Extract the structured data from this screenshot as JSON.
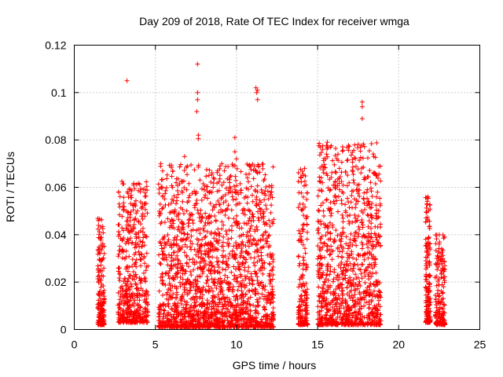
{
  "chart_data": {
    "type": "scatter",
    "title": "Day 209 of 2018, Rate Of TEC Index for receiver wmga",
    "xlabel": "GPS time / hours",
    "ylabel": "ROTI / TECUs",
    "xlim": [
      0,
      25
    ],
    "ylim": [
      0,
      0.12
    ],
    "x_ticks": [
      0,
      5,
      10,
      15,
      20,
      25
    ],
    "x_tick_labels": [
      "0",
      "5",
      "10",
      "15",
      "20",
      "25"
    ],
    "y_ticks": [
      0,
      0.02,
      0.04,
      0.06,
      0.08,
      0.1,
      0.12
    ],
    "y_tick_labels": [
      "0",
      "0.02",
      "0.04",
      "0.06",
      "0.08",
      "0.1",
      "0.12"
    ],
    "grid": true,
    "marker": "+",
    "color": "#ff0000",
    "clusters": [
      {
        "x_range": [
          1.45,
          1.85
        ],
        "y_min": 0.002,
        "y_max": 0.048,
        "density": "dense"
      },
      {
        "x_range": [
          2.7,
          4.55
        ],
        "y_min": 0.003,
        "y_max": 0.064,
        "density": "very dense"
      },
      {
        "x_range": [
          5.2,
          12.3
        ],
        "y_min": 0.001,
        "y_max": 0.07,
        "density": "very dense"
      },
      {
        "x_range": [
          13.8,
          14.4
        ],
        "y_min": 0.002,
        "y_max": 0.068,
        "density": "dense"
      },
      {
        "x_range": [
          15.0,
          18.9
        ],
        "y_min": 0.002,
        "y_max": 0.079,
        "density": "very dense"
      },
      {
        "x_range": [
          21.65,
          21.95
        ],
        "y_min": 0.003,
        "y_max": 0.056,
        "density": "dense"
      },
      {
        "x_range": [
          22.25,
          22.85
        ],
        "y_min": 0.002,
        "y_max": 0.04,
        "density": "dense"
      }
    ],
    "notable_points": [
      {
        "x": 3.25,
        "y": 0.105
      },
      {
        "x": 7.6,
        "y": 0.112
      },
      {
        "x": 7.6,
        "y": 0.1
      },
      {
        "x": 7.6,
        "y": 0.097
      },
      {
        "x": 7.55,
        "y": 0.092
      },
      {
        "x": 7.65,
        "y": 0.082
      },
      {
        "x": 7.65,
        "y": 0.0805
      },
      {
        "x": 6.8,
        "y": 0.073
      },
      {
        "x": 8.3,
        "y": 0.065
      },
      {
        "x": 9.9,
        "y": 0.081
      },
      {
        "x": 9.9,
        "y": 0.075
      },
      {
        "x": 10.0,
        "y": 0.072
      },
      {
        "x": 9.8,
        "y": 0.069
      },
      {
        "x": 11.2,
        "y": 0.102
      },
      {
        "x": 11.25,
        "y": 0.1
      },
      {
        "x": 11.3,
        "y": 0.101
      },
      {
        "x": 11.3,
        "y": 0.097
      },
      {
        "x": 11.1,
        "y": 0.069
      },
      {
        "x": 11.2,
        "y": 0.067
      },
      {
        "x": 15.6,
        "y": 0.079
      },
      {
        "x": 15.6,
        "y": 0.077
      },
      {
        "x": 15.55,
        "y": 0.074
      },
      {
        "x": 15.5,
        "y": 0.072
      },
      {
        "x": 15.6,
        "y": 0.065
      },
      {
        "x": 17.75,
        "y": 0.096
      },
      {
        "x": 17.75,
        "y": 0.094
      },
      {
        "x": 17.75,
        "y": 0.089
      },
      {
        "x": 17.7,
        "y": 0.05
      },
      {
        "x": 14.2,
        "y": 0.068
      },
      {
        "x": 14.1,
        "y": 0.065
      },
      {
        "x": 4.5,
        "y": 0.003
      },
      {
        "x": 21.8,
        "y": 0.056
      },
      {
        "x": 22.5,
        "y": 0.04
      },
      {
        "x": 18.75,
        "y": 0.04
      }
    ]
  }
}
